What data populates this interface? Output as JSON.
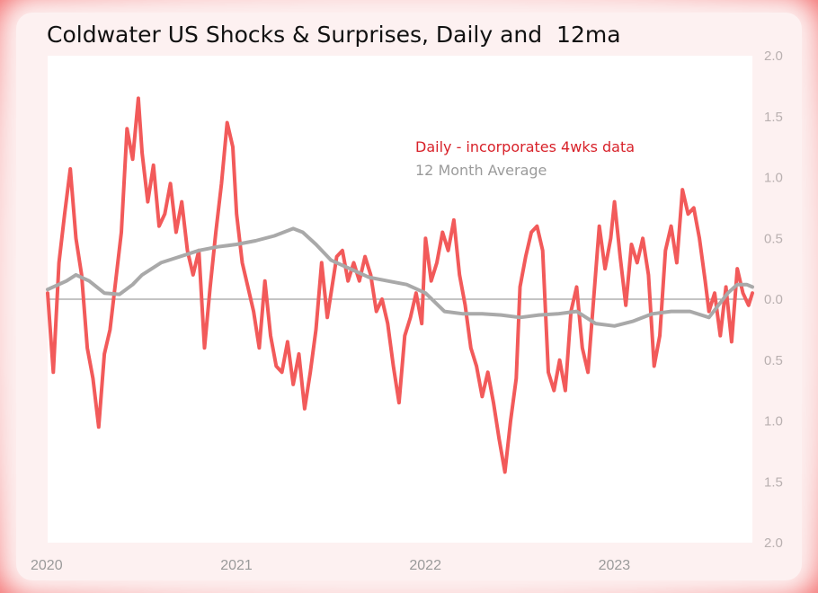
{
  "chart_data": {
    "type": "line",
    "title": "Coldwater US Shocks & Surprises, Daily and  12ma",
    "xlabel": "",
    "ylabel": "",
    "x_tick_labels": [
      "2020",
      "2021",
      "2022",
      "2023"
    ],
    "x_tick_positions": [
      2020,
      2021,
      2022,
      2023
    ],
    "xlim": [
      2020.0,
      2023.73
    ],
    "y_tick_values": [
      2.0,
      1.5,
      1.0,
      0.5,
      0.0,
      -0.5,
      -1.0,
      -1.5,
      -2.0
    ],
    "y_tick_labels": [
      "2.0",
      "1.5",
      "1.0",
      "0.5",
      "0.0",
      "0.5",
      "1.0",
      "1.5",
      "2.0"
    ],
    "ylim": [
      -2.0,
      2.0
    ],
    "legend_position": "upper-right",
    "zero_line": true,
    "series": [
      {
        "name": "Daily - incorporates  4wks data",
        "color": "#f25a5a",
        "x": [
          2020.0,
          2020.03,
          2020.06,
          2020.09,
          2020.12,
          2020.15,
          2020.18,
          2020.21,
          2020.24,
          2020.27,
          2020.3,
          2020.33,
          2020.36,
          2020.39,
          2020.42,
          2020.45,
          2020.48,
          2020.5,
          2020.53,
          2020.56,
          2020.59,
          2020.62,
          2020.65,
          2020.68,
          2020.71,
          2020.74,
          2020.77,
          2020.8,
          2020.83,
          2020.86,
          2020.89,
          2020.92,
          2020.95,
          2020.98,
          2021.0,
          2021.03,
          2021.06,
          2021.09,
          2021.12,
          2021.15,
          2021.18,
          2021.21,
          2021.24,
          2021.27,
          2021.3,
          2021.33,
          2021.36,
          2021.39,
          2021.42,
          2021.45,
          2021.48,
          2021.5,
          2021.53,
          2021.56,
          2021.59,
          2021.62,
          2021.65,
          2021.68,
          2021.71,
          2021.74,
          2021.77,
          2021.8,
          2021.83,
          2021.86,
          2021.89,
          2021.92,
          2021.95,
          2021.98,
          2022.0,
          2022.03,
          2022.06,
          2022.09,
          2022.12,
          2022.15,
          2022.18,
          2022.21,
          2022.24,
          2022.27,
          2022.3,
          2022.33,
          2022.36,
          2022.39,
          2022.42,
          2022.45,
          2022.48,
          2022.5,
          2022.53,
          2022.56,
          2022.59,
          2022.62,
          2022.65,
          2022.68,
          2022.71,
          2022.74,
          2022.77,
          2022.8,
          2022.83,
          2022.86,
          2022.89,
          2022.92,
          2022.95,
          2022.98,
          2023.0,
          2023.03,
          2023.06,
          2023.09,
          2023.12,
          2023.15,
          2023.18,
          2023.21,
          2023.24,
          2023.27,
          2023.3,
          2023.33,
          2023.36,
          2023.39,
          2023.42,
          2023.45,
          2023.48,
          2023.5,
          2023.53,
          2023.56,
          2023.59,
          2023.62,
          2023.65,
          2023.68,
          2023.71,
          2023.73
        ],
        "values": [
          0.05,
          -0.6,
          0.3,
          0.7,
          1.07,
          0.5,
          0.2,
          -0.4,
          -0.65,
          -1.05,
          -0.45,
          -0.25,
          0.15,
          0.55,
          1.4,
          1.15,
          1.65,
          1.2,
          0.8,
          1.1,
          0.6,
          0.7,
          0.95,
          0.55,
          0.8,
          0.4,
          0.2,
          0.4,
          -0.4,
          0.1,
          0.55,
          0.95,
          1.45,
          1.25,
          0.7,
          0.3,
          0.1,
          -0.1,
          -0.4,
          0.15,
          -0.3,
          -0.55,
          -0.6,
          -0.35,
          -0.7,
          -0.45,
          -0.9,
          -0.6,
          -0.25,
          0.3,
          -0.15,
          0.05,
          0.35,
          0.4,
          0.15,
          0.3,
          0.15,
          0.35,
          0.2,
          -0.1,
          0.0,
          -0.2,
          -0.55,
          -0.85,
          -0.3,
          -0.15,
          0.05,
          -0.2,
          0.5,
          0.15,
          0.3,
          0.55,
          0.4,
          0.65,
          0.2,
          -0.05,
          -0.4,
          -0.55,
          -0.8,
          -0.6,
          -0.85,
          -1.15,
          -1.42,
          -1.0,
          -0.65,
          0.1,
          0.35,
          0.55,
          0.6,
          0.4,
          -0.6,
          -0.75,
          -0.5,
          -0.75,
          -0.1,
          0.1,
          -0.4,
          -0.6,
          0.0,
          0.6,
          0.25,
          0.5,
          0.8,
          0.35,
          -0.05,
          0.45,
          0.3,
          0.5,
          0.2,
          -0.55,
          -0.3,
          0.4,
          0.6,
          0.3,
          0.9,
          0.7,
          0.75,
          0.5,
          0.15,
          -0.1,
          0.05,
          -0.3,
          0.1,
          -0.35,
          0.25,
          0.05,
          -0.05,
          0.05
        ],
        "width": 4
      },
      {
        "name": "12 Month Average",
        "color": "#a9a9a9",
        "x": [
          2020.0,
          2020.1,
          2020.15,
          2020.22,
          2020.3,
          2020.38,
          2020.45,
          2020.5,
          2020.6,
          2020.7,
          2020.8,
          2020.9,
          2021.0,
          2021.1,
          2021.2,
          2021.3,
          2021.35,
          2021.42,
          2021.5,
          2021.6,
          2021.7,
          2021.8,
          2021.9,
          2022.0,
          2022.1,
          2022.2,
          2022.3,
          2022.4,
          2022.5,
          2022.6,
          2022.7,
          2022.8,
          2022.9,
          2023.0,
          2023.1,
          2023.2,
          2023.3,
          2023.4,
          2023.5,
          2023.6,
          2023.65,
          2023.7,
          2023.73
        ],
        "values": [
          0.08,
          0.15,
          0.2,
          0.15,
          0.05,
          0.04,
          0.12,
          0.2,
          0.3,
          0.35,
          0.4,
          0.43,
          0.45,
          0.48,
          0.52,
          0.58,
          0.55,
          0.45,
          0.32,
          0.25,
          0.18,
          0.15,
          0.12,
          0.05,
          -0.1,
          -0.12,
          -0.12,
          -0.13,
          -0.15,
          -0.13,
          -0.12,
          -0.1,
          -0.2,
          -0.22,
          -0.18,
          -0.12,
          -0.1,
          -0.1,
          -0.15,
          0.05,
          0.12,
          0.12,
          0.1
        ],
        "width": 4
      }
    ]
  }
}
